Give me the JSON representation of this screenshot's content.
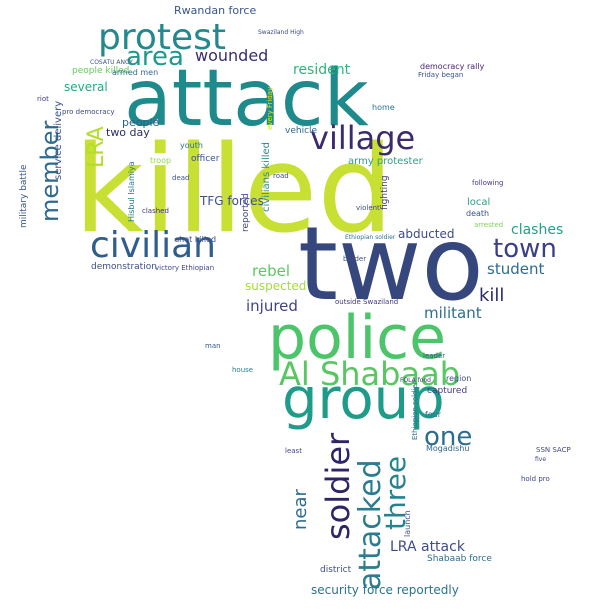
{
  "words": [
    {
      "id": "killed",
      "text": "killed",
      "color": "#c8df34"
    },
    {
      "id": "two",
      "text": "two",
      "color": "#35477c"
    },
    {
      "id": "attack",
      "text": "attack",
      "color": "#1f8a8c"
    },
    {
      "id": "police",
      "text": "police",
      "color": "#4cc56a"
    },
    {
      "id": "group",
      "text": "group",
      "color": "#1e9c89"
    },
    {
      "id": "al_shabaab",
      "text": "Al Shabaab",
      "color": "#58c661"
    },
    {
      "id": "civilian",
      "text": "civilian",
      "color": "#2e5d8e"
    },
    {
      "id": "protest",
      "text": "protest",
      "color": "#23898e"
    },
    {
      "id": "village",
      "text": "village",
      "color": "#3b2a6c"
    },
    {
      "id": "town",
      "text": "town",
      "color": "#3b3f87"
    },
    {
      "id": "soldier",
      "text": "soldier",
      "color": "#2d2566"
    },
    {
      "id": "attacked",
      "text": "attacked",
      "color": "#2a7c8e"
    },
    {
      "id": "three",
      "text": "three",
      "color": "#24848e"
    },
    {
      "id": "member",
      "text": "member",
      "color": "#2f6b8e"
    },
    {
      "id": "one",
      "text": "one",
      "color": "#2b6d8e"
    },
    {
      "id": "area",
      "text": "area",
      "color": "#1f9a8a"
    },
    {
      "id": "wounded",
      "text": "wounded",
      "color": "#3a2e6e"
    },
    {
      "id": "clashes",
      "text": "clashes",
      "color": "#1fa088"
    },
    {
      "id": "kill",
      "text": "kill",
      "color": "#2a2c6a"
    },
    {
      "id": "student",
      "text": "student",
      "color": "#2e6b8e"
    },
    {
      "id": "militant",
      "text": "militant",
      "color": "#2d6f8e"
    },
    {
      "id": "injured",
      "text": "injured",
      "color": "#41428a"
    },
    {
      "id": "rebel",
      "text": "rebel",
      "color": "#5cc863"
    },
    {
      "id": "suspected",
      "text": "suspected",
      "color": "#a8db34"
    },
    {
      "id": "resident",
      "text": "resident",
      "color": "#2fb47c"
    },
    {
      "id": "killing",
      "text": "killing",
      "color": "#3b528b"
    },
    {
      "id": "near",
      "text": "near",
      "color": "#2f6c8e"
    },
    {
      "id": "lra",
      "text": "LRA",
      "color": "#b5de2b"
    },
    {
      "id": "lra_attack",
      "text": "LRA attack",
      "color": "#3e4c8a"
    },
    {
      "id": "security_force",
      "text": "security force reportedly",
      "color": "#2c728e"
    },
    {
      "id": "two_day",
      "text": "two day",
      "color": "#2c2e6b"
    },
    {
      "id": "tfg_forces",
      "text": "TFG forces",
      "color": "#3b518b"
    },
    {
      "id": "abducted",
      "text": "abducted",
      "color": "#3e4a89"
    },
    {
      "id": "several",
      "text": "several",
      "color": "#24aa83"
    },
    {
      "id": "people",
      "text": "people",
      "color": "#2b5f8d"
    },
    {
      "id": "local",
      "text": "local",
      "color": "#2e9d86"
    },
    {
      "id": "army_protester",
      "text": "army protester",
      "color": "#2f9f85"
    },
    {
      "id": "rwandan_force",
      "text": "Rwandan force",
      "color": "#39568c"
    },
    {
      "id": "mogadishu",
      "text": "Mogadishu",
      "color": "#33638d"
    },
    {
      "id": "captured",
      "text": "captured",
      "color": "#443a83"
    },
    {
      "id": "region",
      "text": "region",
      "color": "#3d4d8a"
    },
    {
      "id": "four",
      "text": "four",
      "color": "#2d708e"
    },
    {
      "id": "shabaab_force",
      "text": "Shabaab force",
      "color": "#2e6d8e"
    },
    {
      "id": "service_delivery",
      "text": "service delivery",
      "color": "#3a548c"
    },
    {
      "id": "military_battle",
      "text": "military battle",
      "color": "#38598c"
    },
    {
      "id": "hisbul_islamiya",
      "text": "Hisbul Islamiya",
      "color": "#2a788e"
    },
    {
      "id": "reported",
      "text": "reported",
      "color": "#414487"
    },
    {
      "id": "civilians_killed",
      "text": "civilians killed",
      "color": "#2e8a8c"
    },
    {
      "id": "fighting",
      "text": "fighting",
      "color": "#46337e"
    },
    {
      "id": "officer",
      "text": "officer",
      "color": "#39568c"
    },
    {
      "id": "youth",
      "text": "youth",
      "color": "#2d708e"
    },
    {
      "id": "troop",
      "text": "troop",
      "color": "#8fd744"
    },
    {
      "id": "shot_killed",
      "text": "shot killed",
      "color": "#3e4989"
    },
    {
      "id": "demonstration",
      "text": "demonstration",
      "color": "#3e4c8a"
    },
    {
      "id": "victory_ethiopian",
      "text": "victory Ethiopian",
      "color": "#3f4788"
    },
    {
      "id": "outside_swaziland",
      "text": "outside Swaziland",
      "color": "#453581"
    },
    {
      "id": "house",
      "text": "house",
      "color": "#24868e"
    },
    {
      "id": "district",
      "text": "district",
      "color": "#3d4e8a"
    },
    {
      "id": "people_killed",
      "text": "people killed",
      "color": "#65cb5e"
    },
    {
      "id": "armed_men",
      "text": "armed men",
      "color": "#2f6c8e"
    },
    {
      "id": "democracy_rally",
      "text": "democracy rally",
      "color": "#482576"
    },
    {
      "id": "friday_began",
      "text": "Friday began",
      "color": "#3a538b"
    },
    {
      "id": "riot",
      "text": "riot",
      "color": "#443983"
    },
    {
      "id": "vehicle",
      "text": "vehicle",
      "color": "#31688e"
    },
    {
      "id": "home",
      "text": "home",
      "color": "#2c728e"
    },
    {
      "id": "road",
      "text": "road",
      "color": "#3f4889"
    },
    {
      "id": "clashed",
      "text": "clashed",
      "color": "#46327e"
    },
    {
      "id": "arrested",
      "text": "arrested",
      "color": "#7fd34e"
    },
    {
      "id": "death",
      "text": "death",
      "color": "#3b528b"
    },
    {
      "id": "following",
      "text": "following",
      "color": "#443b84"
    },
    {
      "id": "violent",
      "text": "violent",
      "color": "#3e4c8a"
    },
    {
      "id": "ssn_sacp",
      "text": "SSN SACP",
      "color": "#3f4788"
    },
    {
      "id": "hold_pro",
      "text": "hold pro",
      "color": "#3f4788"
    },
    {
      "id": "five",
      "text": "five",
      "color": "#3f4889"
    },
    {
      "id": "border",
      "text": "border",
      "color": "#3d4e8a"
    },
    {
      "id": "least",
      "text": "least",
      "color": "#3f4788"
    },
    {
      "id": "pro_democracy",
      "text": "pro democracy",
      "color": "#3e4a89"
    },
    {
      "id": "dead",
      "text": "dead",
      "color": "#3b528b"
    },
    {
      "id": "cosatu_ancy",
      "text": "COSATU ANCY",
      "color": "#3b528b"
    },
    {
      "id": "swaziland_high",
      "text": "Swaziland High",
      "color": "#3f4788"
    },
    {
      "id": "ethiopian_soldier",
      "text": "Ethiopian soldier",
      "color": "#2c728e"
    },
    {
      "id": "man",
      "text": "man",
      "color": "#35608d"
    },
    {
      "id": "leader",
      "text": "leader",
      "color": "#3b528b"
    },
    {
      "id": "every_friday",
      "text": "every Friday",
      "color": "#dfe318"
    },
    {
      "id": "launch",
      "text": "launch",
      "color": "#3b528b"
    },
    {
      "id": "fola_food",
      "text": "FOLA food",
      "color": "#443983"
    }
  ]
}
